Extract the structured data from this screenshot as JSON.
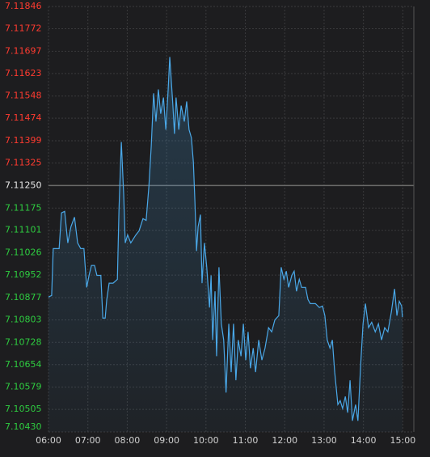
{
  "chart_data": {
    "type": "line",
    "reference": 7.1125,
    "up_color": "#ff3b30",
    "down_color": "#2ecc40",
    "reference_color": "#e8e8e8",
    "grid": true,
    "ylim": [
      7.1043,
      7.11846
    ],
    "yticks": [
      7.11846,
      7.11772,
      7.11697,
      7.11623,
      7.11548,
      7.11474,
      7.11399,
      7.11325,
      {
        "value": 7.1125,
        "label": "7.11250"
      },
      7.11175,
      7.11101,
      7.11026,
      7.10952,
      7.10877,
      7.10803,
      7.10728,
      7.10654,
      7.10579,
      7.10505,
      {
        "value": 7.1043,
        "label": "7.10430"
      }
    ],
    "xlim": [
      6,
      15.28
    ],
    "xticks": [
      {
        "value": 6,
        "label": "06:00"
      },
      {
        "value": 7,
        "label": "07:00"
      },
      {
        "value": 8,
        "label": "08:00"
      },
      {
        "value": 9,
        "label": "09:00"
      },
      {
        "value": 10,
        "label": "10:00"
      },
      {
        "value": 11,
        "label": "11:00"
      },
      {
        "value": 12,
        "label": "12:00"
      },
      {
        "value": 13,
        "label": "13:00"
      },
      {
        "value": 14,
        "label": "14:00"
      },
      {
        "value": 15,
        "label": "15:00"
      }
    ],
    "series": [
      {
        "color": "#4aa8e8",
        "x": [
          6.0,
          6.08,
          6.12,
          6.27,
          6.33,
          6.41,
          6.49,
          6.57,
          6.66,
          6.74,
          6.82,
          6.9,
          6.97,
          7.03,
          7.09,
          7.17,
          7.23,
          7.33,
          7.38,
          7.44,
          7.48,
          7.54,
          7.64,
          7.75,
          7.79,
          7.85,
          7.91,
          7.95,
          8.01,
          8.09,
          8.22,
          8.3,
          8.4,
          8.48,
          8.55,
          8.61,
          8.67,
          8.73,
          8.79,
          8.85,
          8.92,
          8.98,
          9.04,
          9.08,
          9.12,
          9.16,
          9.2,
          9.24,
          9.31,
          9.37,
          9.45,
          9.51,
          9.57,
          9.63,
          9.68,
          9.72,
          9.76,
          9.8,
          9.86,
          9.9,
          9.96,
          10.02,
          10.09,
          10.13,
          10.17,
          10.23,
          10.27,
          10.33,
          10.39,
          10.45,
          10.51,
          10.58,
          10.64,
          10.7,
          10.76,
          10.82,
          10.89,
          10.95,
          11.01,
          11.07,
          11.13,
          11.2,
          11.26,
          11.34,
          11.42,
          11.5,
          11.59,
          11.67,
          11.75,
          11.85,
          11.91,
          11.98,
          12.04,
          12.1,
          12.18,
          12.24,
          12.3,
          12.37,
          12.43,
          12.53,
          12.59,
          12.65,
          12.78,
          12.88,
          12.96,
          13.02,
          13.08,
          13.15,
          13.21,
          13.27,
          13.35,
          13.41,
          13.47,
          13.54,
          13.6,
          13.66,
          13.72,
          13.8,
          13.86,
          13.93,
          13.99,
          14.05,
          14.13,
          14.21,
          14.3,
          14.38,
          14.46,
          14.54,
          14.62,
          14.71,
          14.79,
          14.85,
          14.91,
          14.97,
          14.99
        ],
        "values": [
          7.10879,
          7.10884,
          7.1104,
          7.1104,
          7.11159,
          7.11164,
          7.11059,
          7.11113,
          7.11145,
          7.11059,
          7.1104,
          7.1104,
          7.10911,
          7.10951,
          7.10984,
          7.10984,
          7.10951,
          7.10951,
          7.10809,
          7.10809,
          7.10871,
          7.10925,
          7.10925,
          7.10938,
          7.11167,
          7.11395,
          7.1122,
          7.11059,
          7.11086,
          7.11059,
          7.11086,
          7.11099,
          7.1114,
          7.11134,
          7.11247,
          7.11382,
          7.11557,
          7.11463,
          7.1157,
          7.11489,
          7.11543,
          7.11436,
          7.1157,
          7.11678,
          7.11597,
          7.11516,
          7.11422,
          7.11543,
          7.11436,
          7.11516,
          7.11463,
          7.1153,
          7.11436,
          7.11409,
          7.11328,
          7.11194,
          7.11032,
          7.11113,
          7.11153,
          7.10925,
          7.11059,
          7.10978,
          7.10844,
          7.10951,
          7.10736,
          7.10898,
          7.10682,
          7.10978,
          7.1079,
          7.10736,
          7.10561,
          7.1079,
          7.10629,
          7.1079,
          7.10602,
          7.10736,
          7.10682,
          7.1079,
          7.10669,
          7.10763,
          7.10642,
          7.10709,
          7.10629,
          7.10736,
          7.10669,
          7.10709,
          7.10777,
          7.10763,
          7.10803,
          7.10817,
          7.10978,
          7.10938,
          7.10965,
          7.10911,
          7.10951,
          7.10965,
          7.10898,
          7.10938,
          7.10911,
          7.10911,
          7.10871,
          7.10857,
          7.10857,
          7.10844,
          7.10849,
          7.10817,
          7.10736,
          7.10709,
          7.10736,
          7.10629,
          7.10521,
          7.10534,
          7.10508,
          7.10548,
          7.10494,
          7.10602,
          7.10467,
          7.10521,
          7.10467,
          7.10655,
          7.1079,
          7.10857,
          7.10777,
          7.10795,
          7.10763,
          7.1079,
          7.10736,
          7.10777,
          7.10763,
          7.1083,
          7.10906,
          7.10817,
          7.10865,
          7.10849,
          7.10812
        ]
      }
    ]
  }
}
